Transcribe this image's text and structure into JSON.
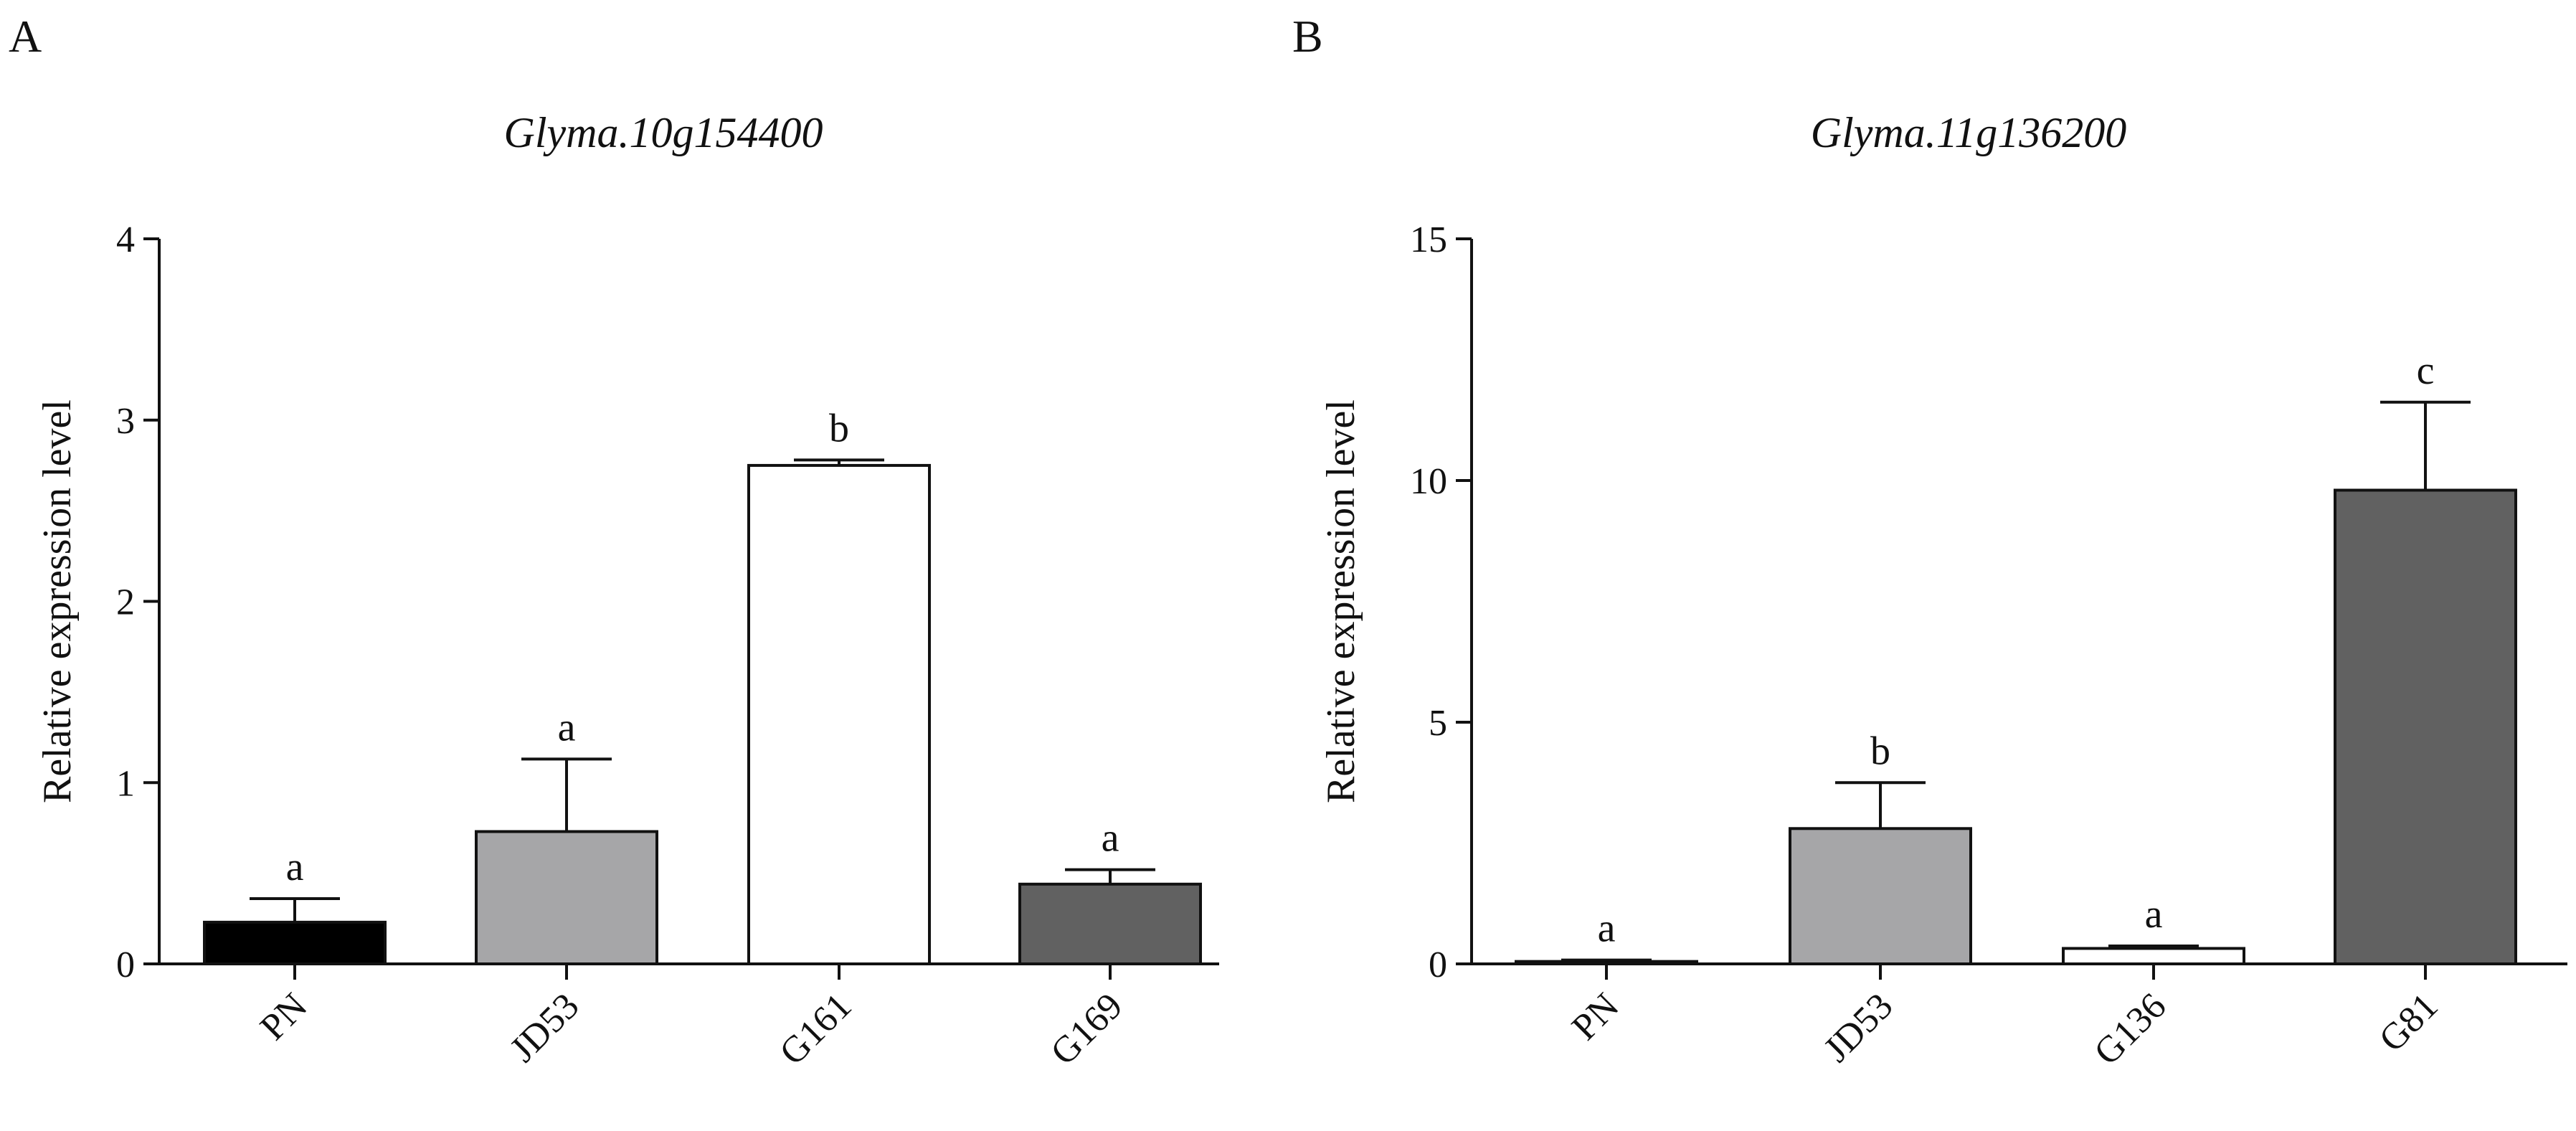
{
  "chart_data": [
    {
      "type": "bar",
      "panel": "A",
      "title": "Glyma.10g154400",
      "xlabel": "",
      "ylabel": "Relative expression level",
      "ylim": [
        0,
        4
      ],
      "yticks": [
        0,
        1,
        2,
        3,
        4
      ],
      "grid": false,
      "categories": [
        "PN",
        "JD53",
        "G161",
        "G169"
      ],
      "values": [
        0.23,
        0.73,
        2.75,
        0.44
      ],
      "errors": [
        0.13,
        0.4,
        0.03,
        0.08
      ],
      "significance": [
        "a",
        "a",
        "b",
        "a"
      ],
      "colors": [
        "#000000",
        "#a6a6a8",
        "#ffffff",
        "#616161"
      ]
    },
    {
      "type": "bar",
      "panel": "B",
      "title": "Glyma.11g136200",
      "xlabel": "",
      "ylabel": "Relative expression level",
      "ylim": [
        0,
        15
      ],
      "yticks": [
        0,
        5,
        10,
        15
      ],
      "grid": false,
      "categories": [
        "PN",
        "JD53",
        "G136",
        "G81"
      ],
      "values": [
        0.05,
        2.8,
        0.32,
        9.8
      ],
      "errors": [
        0.03,
        0.95,
        0.05,
        1.82
      ],
      "significance": [
        "a",
        "b",
        "a",
        "c"
      ],
      "colors": [
        "#ffffff",
        "#a6a6a8",
        "#ffffff",
        "#616161"
      ]
    }
  ]
}
